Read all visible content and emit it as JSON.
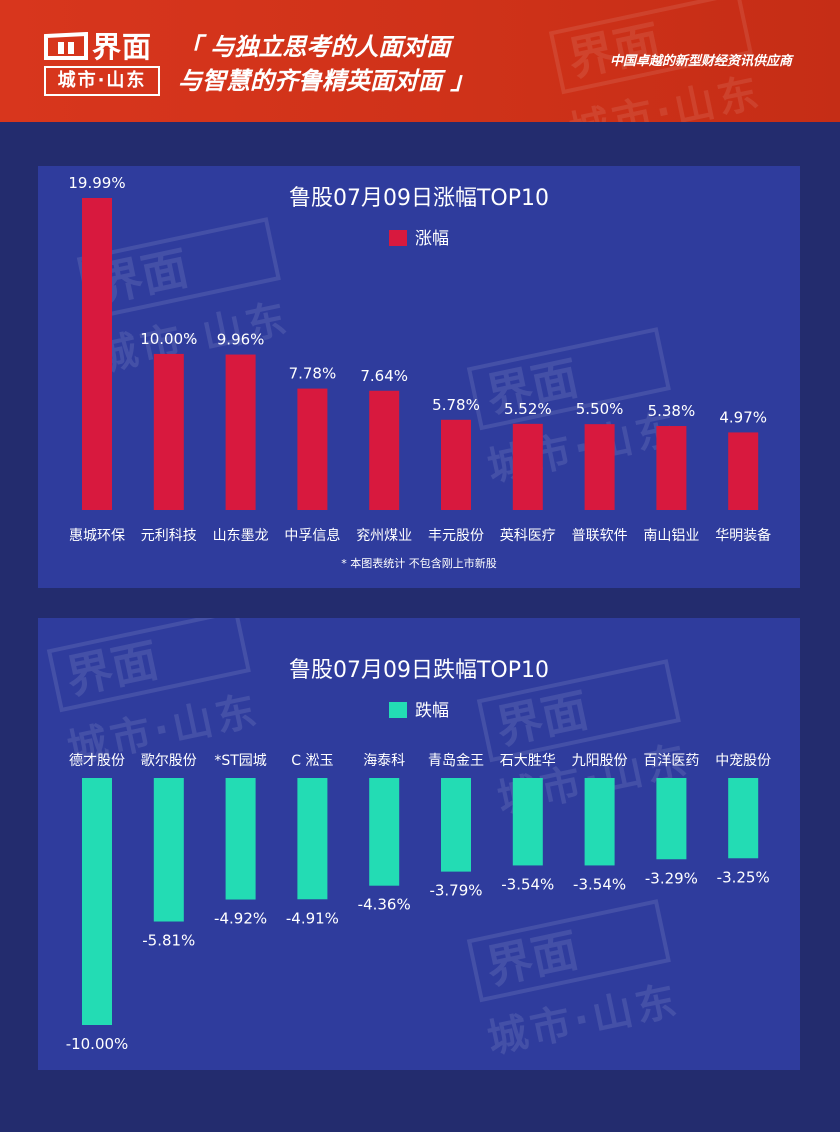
{
  "brand": {
    "logo_text": "界面",
    "logo_sub": "城市·山东"
  },
  "header": {
    "slogan_line1": "「 与独立思考的人面对面",
    "slogan_line2": "与智慧的齐鲁精英面对面 」",
    "tagline": "中国卓越的新型财经资讯供应商"
  },
  "colors": {
    "header": "#d8361d",
    "background": "#232c6e",
    "panel": "#2f3c9d",
    "rise": "#d8193e",
    "fall": "#23dcb4"
  },
  "chart_data": [
    {
      "type": "bar",
      "title": "鲁股07月09日涨幅TOP10",
      "legend": "涨幅",
      "categories": [
        "惠城环保",
        "元利科技",
        "山东墨龙",
        "中孚信息",
        "兖州煤业",
        "丰元股份",
        "英科医疗",
        "普联软件",
        "南山铝业",
        "华明装备"
      ],
      "series": [
        {
          "name": "涨幅",
          "values": [
            19.99,
            10.0,
            9.96,
            7.78,
            7.64,
            5.78,
            5.52,
            5.5,
            5.38,
            4.97
          ]
        }
      ],
      "value_labels": [
        "19.99%",
        "10.00%",
        "9.96%",
        "7.78%",
        "7.64%",
        "5.78%",
        "5.52%",
        "5.50%",
        "5.38%",
        "4.97%"
      ],
      "note": "* 本图表统计 不包含刚上市新股",
      "grid": false,
      "legend_position": "top-center"
    },
    {
      "type": "bar",
      "title": "鲁股07月09日跌幅TOP10",
      "legend": "跌幅",
      "categories": [
        "德才股份",
        "歌尔股份",
        "*ST园城",
        "C 淞玉",
        "海泰科",
        "青岛金王",
        "石大胜华",
        "九阳股份",
        "百洋医药",
        "中宠股份"
      ],
      "series": [
        {
          "name": "跌幅",
          "values": [
            -10.0,
            -5.81,
            -4.92,
            -4.91,
            -4.36,
            -3.79,
            -3.54,
            -3.54,
            -3.29,
            -3.25
          ]
        }
      ],
      "value_labels": [
        "-10.00%",
        "-5.81%",
        "-4.92%",
        "-4.91%",
        "-4.36%",
        "-3.79%",
        "-3.54%",
        "-3.54%",
        "-3.29%",
        "-3.25%"
      ],
      "grid": false,
      "legend_position": "top-center"
    }
  ]
}
